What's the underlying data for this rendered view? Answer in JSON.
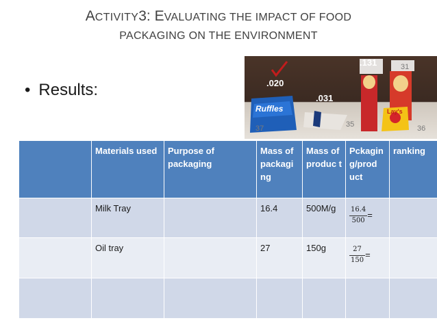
{
  "slide": {
    "title_line1_cap": "A",
    "title_line1_rest": "CTIVITY",
    "title_line1_num": "3: ",
    "title_line1_cap2": "E",
    "title_line1_rest2": "VALUATING THE IMPACT OF FOOD",
    "title_line2": "PACKAGING ON THE ENVIRONMENT",
    "bullet": "Results:"
  },
  "photo": {
    "labels": [
      ".020",
      ".031",
      ".131"
    ],
    "numbers": [
      "37",
      "35",
      "31",
      "36"
    ],
    "brands": [
      "Ruffles",
      "Lay's"
    ],
    "check_icon": "checkmark-icon"
  },
  "table": {
    "headers": [
      "",
      "Materials used",
      "Purpose of packaging",
      "Mass of packaging",
      "Mass of product",
      "Pckaging/product",
      "ranking"
    ],
    "header_display": {
      "materials": "Materials used",
      "purpose": "Purpose of packaging",
      "mass_pack": "Mass of packagi ng",
      "mass_prod": "Mass of produc t",
      "ratio": "Pckagin g/prod uct",
      "ranking": "ranking"
    },
    "rows": [
      {
        "material": "Milk Tray",
        "purpose": "",
        "mass_pack": "16.4",
        "mass_prod": "500M/g",
        "ratio_num": "16.4",
        "ratio_den": "500",
        "ratio_eq": "=",
        "ranking": ""
      },
      {
        "material": "Oil tray",
        "purpose": "",
        "mass_pack": "27",
        "mass_prod": "150g",
        "ratio_num": "27",
        "ratio_den": "150",
        "ratio_eq": "=",
        "ranking": ""
      },
      {
        "material": "",
        "purpose": "",
        "mass_pack": "",
        "mass_prod": "",
        "ratio_num": "",
        "ratio_den": "",
        "ratio_eq": "",
        "ranking": ""
      }
    ]
  },
  "colors": {
    "header_blue": "#4f81bd",
    "row_light": "#d0d8e8",
    "row_lighter": "#e9edf4",
    "title_gray": "#404040"
  }
}
